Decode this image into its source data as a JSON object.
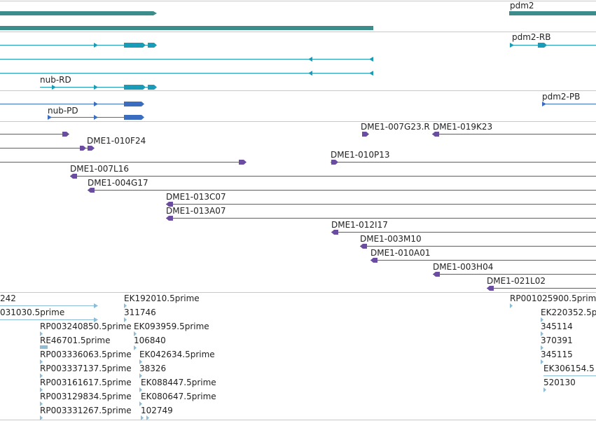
{
  "colors": {
    "gene": "#3d8c8c",
    "transcript_teal": "#1a9bb8",
    "transcript_blue": "#3a6dbf",
    "clone": "#6a4ca0",
    "est": "#8cbcd8",
    "separator": "#c8c8c8"
  },
  "gene_track": {
    "genes": [
      {
        "label": "pdm2"
      }
    ]
  },
  "transcripts_a": {
    "labels": [
      {
        "label": "pdm2-RB"
      },
      {
        "label": "nub-RD"
      }
    ]
  },
  "transcripts_b": {
    "labels": [
      {
        "label": "pdm2-PB"
      },
      {
        "label": "nub-PD"
      }
    ]
  },
  "clones": {
    "labels": [
      {
        "label": "DME1-007G23.R"
      },
      {
        "label": "DME1-019K23"
      },
      {
        "label": "DME1-010F24"
      },
      {
        "label": "DME1-010P13"
      },
      {
        "label": "DME1-007L16"
      },
      {
        "label": "DME1-004G17"
      },
      {
        "label": "DME1-013C07"
      },
      {
        "label": "DME1-013A07"
      },
      {
        "label": "DME1-012I17"
      },
      {
        "label": "DME1-003M10"
      },
      {
        "label": "DME1-010A01"
      },
      {
        "label": "DME1-003H04"
      },
      {
        "label": "DME1-021L02"
      }
    ]
  },
  "ests": {
    "labels": [
      {
        "label": "242"
      },
      {
        "label": "031030.5prime"
      },
      {
        "label": "EK192010.5prime"
      },
      {
        "label": "311746"
      },
      {
        "label": "RP003240850.5prime"
      },
      {
        "label": "EK093959.5prime"
      },
      {
        "label": "RE46701.5prime"
      },
      {
        "label": "106840"
      },
      {
        "label": "RP003336063.5prime"
      },
      {
        "label": "EK042634.5prime"
      },
      {
        "label": "RP003337137.5prime"
      },
      {
        "label": "38326"
      },
      {
        "label": "RP003161617.5prime"
      },
      {
        "label": "EK088447.5prime"
      },
      {
        "label": "RP003129834.5prime"
      },
      {
        "label": "EK080647.5prime"
      },
      {
        "label": "RP003331267.5prime"
      },
      {
        "label": "102749"
      },
      {
        "label": "RP001025900.5prime"
      },
      {
        "label": "EK220352.5p"
      },
      {
        "label": "345114"
      },
      {
        "label": "370391"
      },
      {
        "label": "345115"
      },
      {
        "label": "EK306154.5"
      },
      {
        "label": "520130"
      }
    ]
  }
}
